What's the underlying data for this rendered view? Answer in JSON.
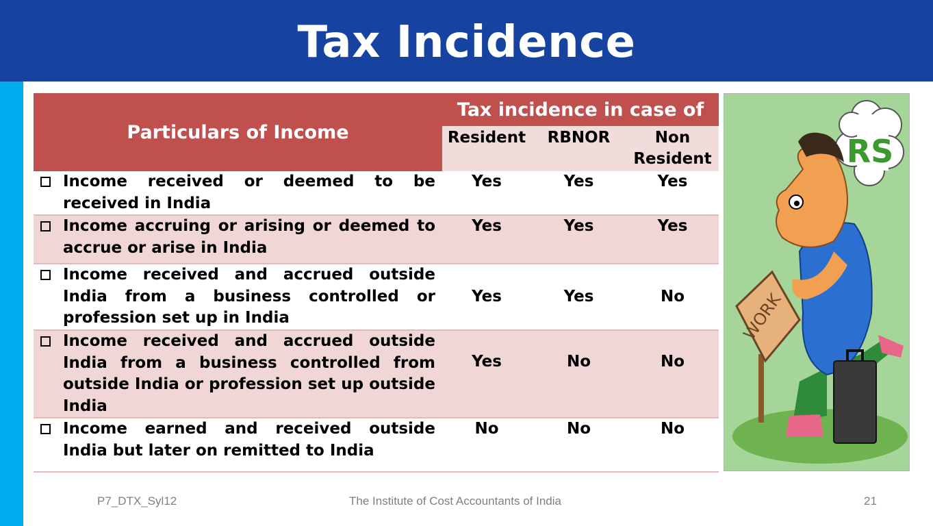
{
  "slide": {
    "title": "Tax Incidence",
    "page_number": "21"
  },
  "table": {
    "particulars_header": "Particulars of Income",
    "group_header": "Tax incidence in case of",
    "columns": [
      "Resident",
      "RBNOR",
      "Non Resident"
    ],
    "rows": [
      {
        "particular": "Income received or deemed to be received in India",
        "resident": "Yes",
        "rbnor": "Yes",
        "non_resident": "Yes"
      },
      {
        "particular": "Income accruing or arising or deemed to accrue or arise in India",
        "resident": "Yes",
        "rbnor": "Yes",
        "non_resident": "Yes"
      },
      {
        "particular": "Income received and accrued outside India from a business controlled or profession set up in India",
        "resident": "Yes",
        "rbnor": "Yes",
        "non_resident": "No"
      },
      {
        "particular": "Income received and accrued outside India from a business controlled from outside India or profession set up outside India",
        "resident": "Yes",
        "rbnor": "No",
        "non_resident": "No"
      },
      {
        "particular": "Income earned and received outside India but later on remitted to India",
        "resident": "No",
        "rbnor": "No",
        "non_resident": "No"
      }
    ]
  },
  "illustration": {
    "cloud_text": "RS",
    "sign_text": "WORK"
  },
  "footer": {
    "left": "P7_DTX_Syl12",
    "center": "The Institute of Cost Accountants of India"
  },
  "colors": {
    "title_bar": "#1643a0",
    "accent_strip": "#00aeef",
    "header_red": "#c0504d",
    "row_pink": "#f0d7d6"
  }
}
